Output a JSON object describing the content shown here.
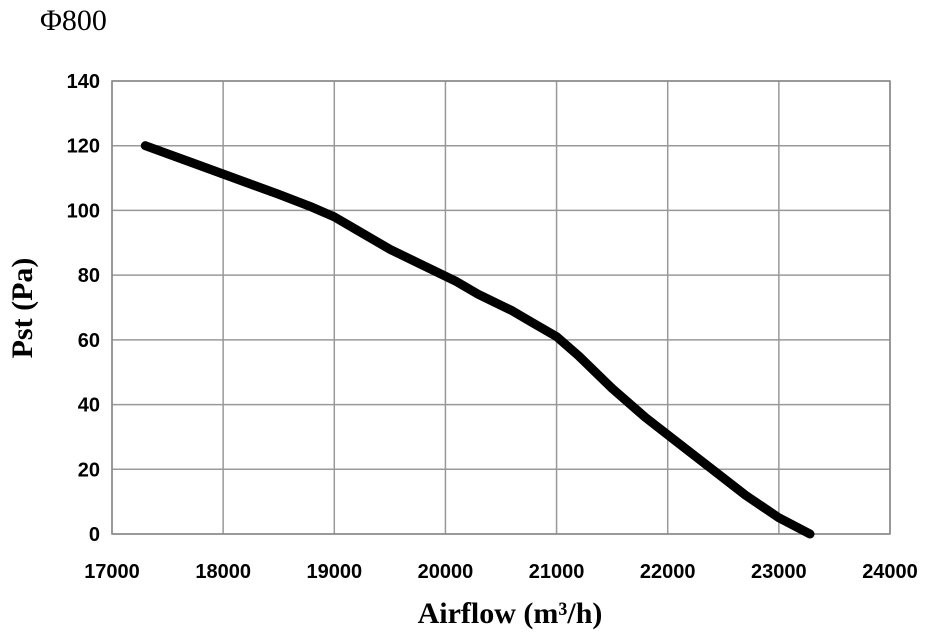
{
  "chart_data": {
    "type": "line",
    "title": "Φ800",
    "xlabel": "Airflow (m³/h)",
    "ylabel": "Pst (Pa)",
    "xlim": [
      17000,
      24000
    ],
    "ylim": [
      0,
      140
    ],
    "x_ticks": [
      "17000",
      "18000",
      "19000",
      "20000",
      "21000",
      "22000",
      "23000",
      "24000"
    ],
    "y_ticks": [
      "0",
      "20",
      "40",
      "60",
      "80",
      "100",
      "120",
      "140"
    ],
    "grid": true,
    "legend": "none",
    "line_color": "#000000",
    "series": [
      {
        "x": [
          17300,
          17700,
          18100,
          18500,
          18800,
          19000,
          19200,
          19500,
          19800,
          20100,
          20300,
          20600,
          20800,
          21000,
          21200,
          21500,
          21800,
          22100,
          22400,
          22700,
          23000,
          23280
        ],
        "y": [
          120,
          115,
          110,
          105,
          101,
          98,
          94,
          88,
          83,
          78,
          74,
          69,
          65,
          61,
          55,
          45,
          36,
          28,
          20,
          12,
          5,
          0
        ]
      }
    ]
  }
}
